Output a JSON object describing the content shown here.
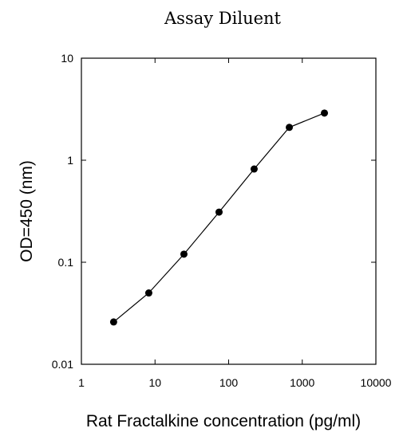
{
  "chart_data": {
    "type": "scatter",
    "title": "Assay Diluent",
    "xlabel": "Rat Fractalkine concentration (pg/ml)",
    "ylabel": "OD=450 (nm)",
    "x_scale": "log",
    "y_scale": "log",
    "xlim": [
      1,
      10000
    ],
    "ylim": [
      0.01,
      10
    ],
    "x_ticks": [
      1,
      10,
      100,
      1000,
      10000
    ],
    "x_tick_labels": [
      "1",
      "10",
      "100",
      "1000",
      "10000"
    ],
    "y_ticks": [
      0.01,
      0.1,
      1,
      10
    ],
    "y_tick_labels": [
      "0.01",
      "0.1",
      "1",
      "10"
    ],
    "grid": false,
    "legend": false,
    "series": [
      {
        "x": [
          2.74,
          8.23,
          24.7,
          74.1,
          222,
          667,
          2000
        ],
        "y": [
          0.026,
          0.05,
          0.12,
          0.31,
          0.82,
          2.1,
          2.9
        ],
        "connected": true
      }
    ]
  }
}
